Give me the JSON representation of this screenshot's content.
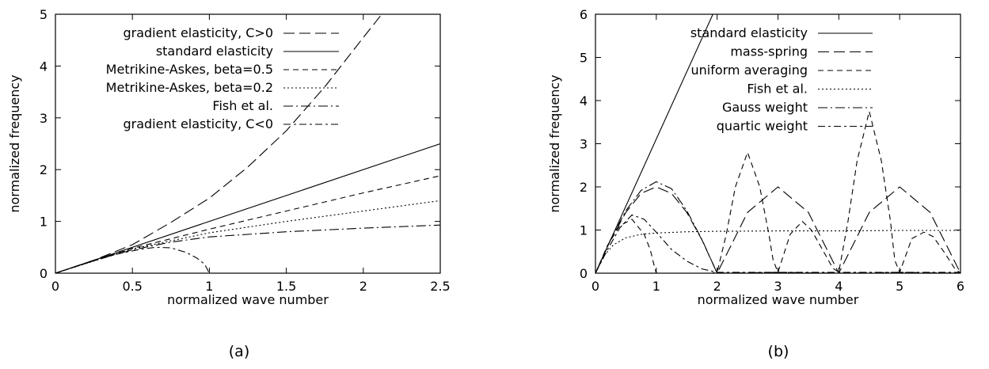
{
  "chart_data": [
    {
      "type": "line",
      "caption": "(a)",
      "xlabel": "normalized wave number",
      "ylabel": "normalized frequency",
      "xlim": [
        0,
        2.5
      ],
      "ylim": [
        0,
        5
      ],
      "xticks": [
        "0",
        "0.5",
        "1",
        "1.5",
        "2",
        "2.5"
      ],
      "yticks": [
        "0",
        "1",
        "2",
        "3",
        "4",
        "5"
      ],
      "legend_position": "top-left",
      "series": [
        {
          "name": "gradient elasticity, C>0",
          "dash": "long-dash",
          "x": [
            0,
            0.25,
            0.5,
            0.75,
            1.0,
            1.25,
            1.5,
            1.75,
            2.0,
            2.12
          ],
          "y": [
            0,
            0.25,
            0.55,
            0.98,
            1.45,
            2.05,
            2.75,
            3.6,
            4.55,
            5.0
          ]
        },
        {
          "name": "standard elasticity",
          "dash": "solid",
          "x": [
            0,
            2.5
          ],
          "y": [
            0,
            2.5
          ]
        },
        {
          "name": "Metrikine-Askes, beta=0.5",
          "dash": "short-dash",
          "x": [
            0,
            0.5,
            1.0,
            1.5,
            2.0,
            2.5
          ],
          "y": [
            0,
            0.48,
            0.85,
            1.2,
            1.55,
            1.88
          ]
        },
        {
          "name": "Metrikine-Askes, beta=0.2",
          "dash": "dotted",
          "x": [
            0,
            0.5,
            1.0,
            1.5,
            2.0,
            2.5
          ],
          "y": [
            0,
            0.47,
            0.78,
            1.0,
            1.2,
            1.4
          ]
        },
        {
          "name": "Fish et al.",
          "dash": "dash-dot",
          "x": [
            0,
            0.25,
            0.5,
            0.75,
            1.0,
            1.5,
            2.0,
            2.5
          ],
          "y": [
            0,
            0.25,
            0.45,
            0.6,
            0.7,
            0.8,
            0.87,
            0.93
          ]
        },
        {
          "name": "gradient elasticity, C<0",
          "dash": "dash-dot-2",
          "x": [
            0,
            0.25,
            0.4,
            0.55,
            0.65,
            0.75,
            0.85,
            0.92,
            0.97,
            1.0
          ],
          "y": [
            0,
            0.24,
            0.37,
            0.46,
            0.5,
            0.49,
            0.4,
            0.29,
            0.17,
            0.0
          ]
        }
      ]
    },
    {
      "type": "line",
      "caption": "(b)",
      "xlabel": "normalized wave number",
      "ylabel": "normalized frequency",
      "xlim": [
        0,
        6
      ],
      "ylim": [
        0,
        6
      ],
      "xticks": [
        "0",
        "1",
        "2",
        "3",
        "4",
        "5",
        "6"
      ],
      "yticks": [
        "0",
        "1",
        "2",
        "3",
        "4",
        "5",
        "6"
      ],
      "legend_position": "top-right",
      "series": [
        {
          "name": "standard elasticity",
          "dash": "solid",
          "x": [
            0,
            1.93
          ],
          "y": [
            0,
            6.0
          ]
        },
        {
          "name": "mass-spring",
          "dash": "long-dash",
          "x": [
            0,
            0.25,
            0.5,
            0.75,
            1.0,
            1.25,
            1.5,
            1.75,
            2.0,
            2.5,
            3.0,
            3.5,
            4.0,
            4.5,
            5.0,
            5.5,
            6.0
          ],
          "y": [
            0,
            0.77,
            1.41,
            1.85,
            2.0,
            1.85,
            1.41,
            0.77,
            0.0,
            1.41,
            2.0,
            1.41,
            0.0,
            1.41,
            2.0,
            1.41,
            0.0
          ]
        },
        {
          "name": "uniform averaging",
          "dash": "short-dash",
          "x": [
            0,
            0.2,
            0.4,
            0.6,
            0.8,
            0.9,
            0.97,
            1.0,
            1.9,
            2.0,
            2.15,
            2.3,
            2.5,
            2.7,
            2.85,
            2.92,
            3.0,
            3.2,
            3.4,
            3.55,
            3.75,
            3.9,
            4.0,
            4.15,
            4.3,
            4.5,
            4.7,
            4.85,
            4.92,
            5.0,
            5.2,
            5.4,
            5.55,
            5.75,
            5.9,
            6.0
          ],
          "y": [
            0,
            0.65,
            1.1,
            1.25,
            0.9,
            0.55,
            0.15,
            0.0,
            0.0,
            0.02,
            0.9,
            2.0,
            2.8,
            2.0,
            0.9,
            0.3,
            0.02,
            0.9,
            1.2,
            1.0,
            0.5,
            0.12,
            0.02,
            1.2,
            2.6,
            3.75,
            2.6,
            1.2,
            0.3,
            0.02,
            0.8,
            0.95,
            0.85,
            0.45,
            0.12,
            0.0
          ]
        },
        {
          "name": "Fish et al.",
          "dash": "dotted",
          "x": [
            0,
            0.15,
            0.3,
            0.5,
            0.75,
            1.0,
            1.5,
            2.0,
            3.0,
            4.0,
            5.0,
            6.0
          ],
          "y": [
            0,
            0.42,
            0.66,
            0.82,
            0.9,
            0.93,
            0.96,
            0.97,
            0.98,
            0.98,
            0.99,
            0.99
          ]
        },
        {
          "name": "Gauss weight",
          "dash": "dash-dot",
          "x": [
            0,
            0.25,
            0.5,
            0.75,
            1.0,
            1.25,
            1.5,
            1.75,
            2.0,
            2.5,
            3.0,
            3.5,
            4.0,
            4.5,
            5.0,
            5.5,
            6.0
          ],
          "y": [
            0,
            0.78,
            1.45,
            1.92,
            2.12,
            1.96,
            1.45,
            0.78,
            0.0,
            0.01,
            0.02,
            0.01,
            0.0,
            0.01,
            0.02,
            0.01,
            0.0
          ]
        },
        {
          "name": "quartic weight",
          "dash": "dash-dot-2",
          "x": [
            0,
            0.2,
            0.4,
            0.6,
            0.8,
            1.0,
            1.25,
            1.5,
            1.75,
            2.0,
            3.0,
            4.0,
            5.0,
            6.0
          ],
          "y": [
            0,
            0.55,
            1.05,
            1.35,
            1.25,
            0.95,
            0.55,
            0.28,
            0.1,
            0.02,
            0.02,
            0.02,
            0.02,
            0.02
          ]
        }
      ]
    }
  ]
}
